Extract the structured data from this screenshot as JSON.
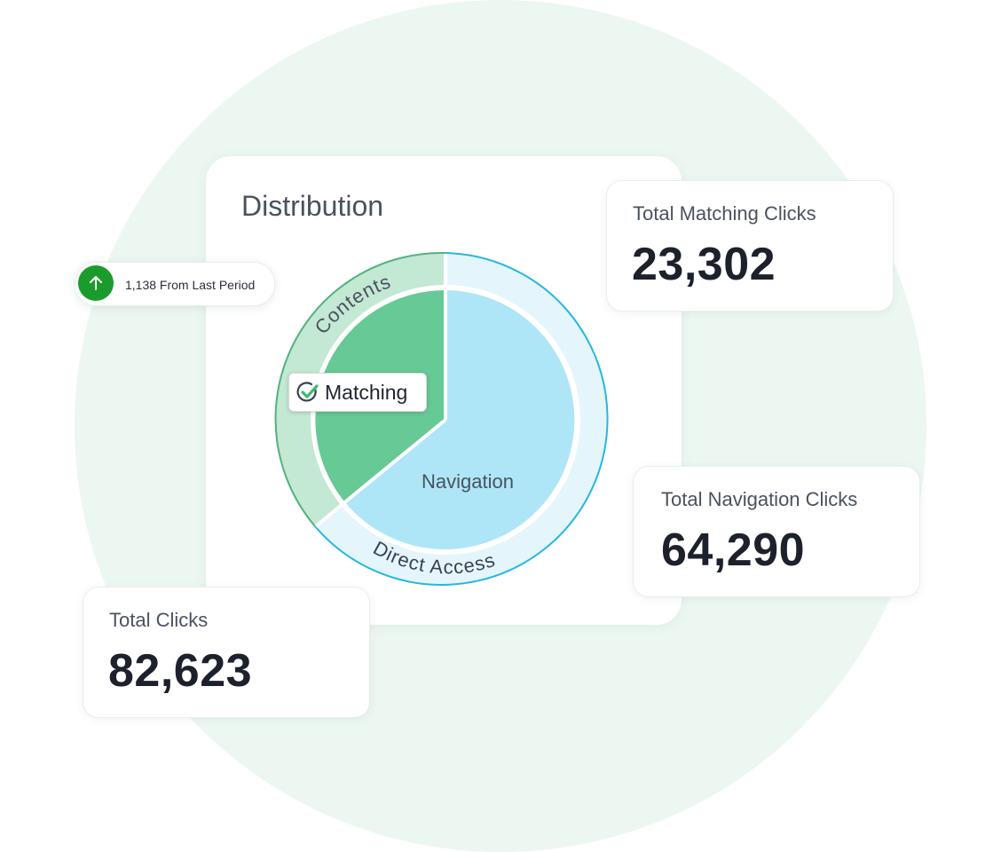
{
  "distribution": {
    "title": "Distribution",
    "inner_labels": {
      "navigation": "Navigation"
    },
    "ring_labels": {
      "contents": "Contents",
      "direct_access": "Direct Access"
    },
    "matching_tag": "Matching"
  },
  "trend": {
    "text": "1,138 From Last Period",
    "icon": "arrow-up-icon"
  },
  "stats": {
    "matching": {
      "label": "Total Matching Clicks",
      "value": "23,302"
    },
    "navigation": {
      "label": "Total Navigation Clicks",
      "value": "64,290"
    },
    "total": {
      "label": "Total Clicks",
      "value": "82,623"
    }
  },
  "colors": {
    "matching": "#67c995",
    "navigation": "#aee6f8",
    "contents_ring": "#c3e8d3",
    "direct_access_ring": "#e4f6fc",
    "navigation_border": "#25b7e4",
    "matching_border": "#52b27e",
    "trend_up": "#1a9b2c",
    "background": "#ecf7f1"
  }
}
